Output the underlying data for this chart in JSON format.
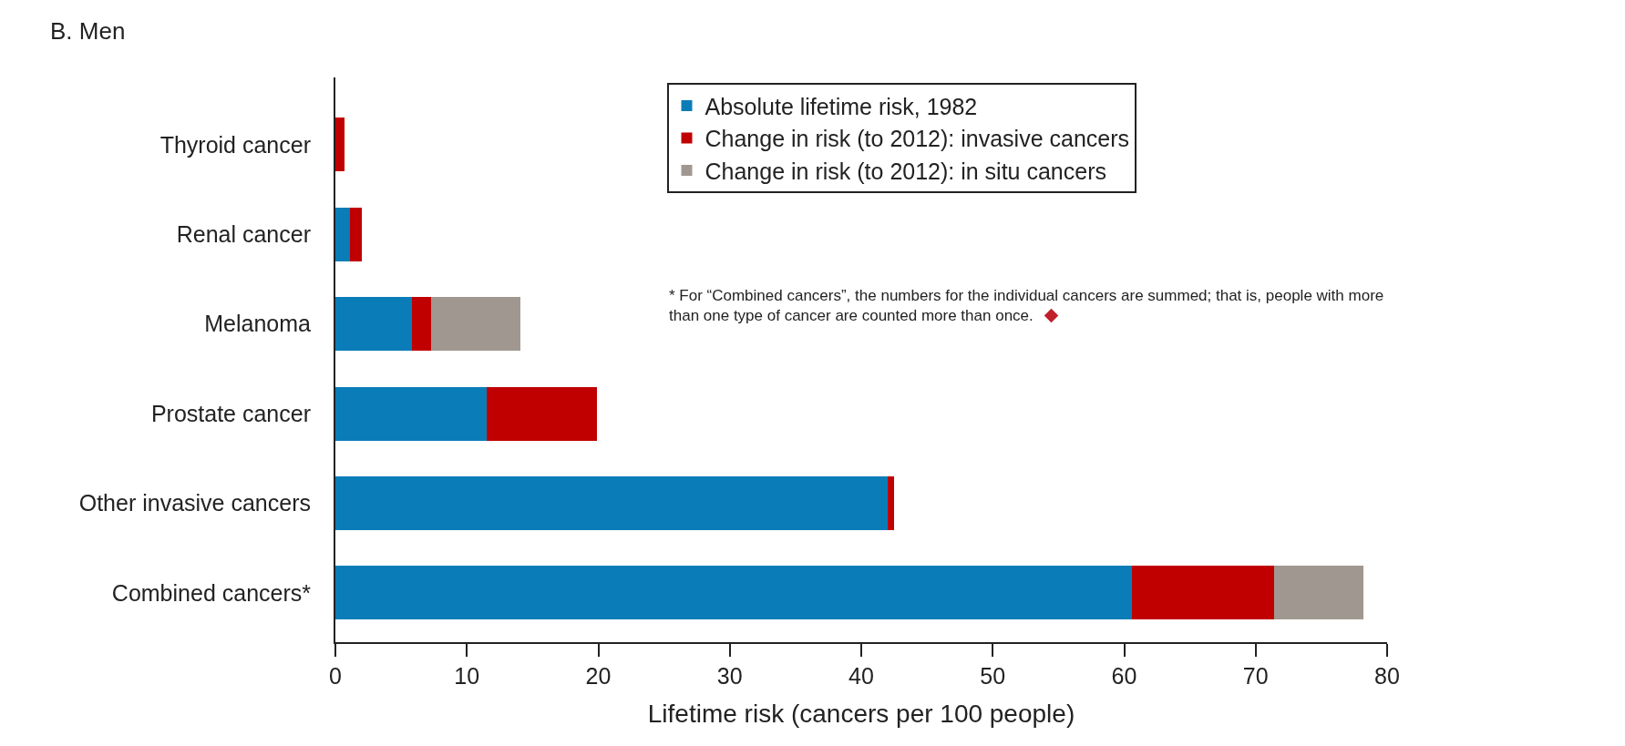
{
  "chart_data": {
    "type": "bar",
    "title": "B. Men",
    "orientation": "horizontal",
    "stacked": true,
    "categories": [
      "Thyroid cancer",
      "Renal cancer",
      "Melanoma",
      "Prostate cancer",
      "Other invasive cancers",
      "Combined cancers*"
    ],
    "series": [
      {
        "name": "Absolute lifetime risk, 1982",
        "color": "#0a7db8",
        "values": [
          0,
          1.1,
          5.8,
          11.5,
          42.0,
          60.6
        ]
      },
      {
        "name": "Change in risk (to 2012): invasive cancers",
        "color": "#c00000",
        "values": [
          0.7,
          0.9,
          1.5,
          8.4,
          0.5,
          10.8
        ]
      },
      {
        "name": "Change in risk (to 2012): in situ cancers",
        "color": "#a09890",
        "values": [
          0,
          0,
          6.8,
          0,
          0,
          6.8
        ]
      }
    ],
    "xlabel": "Lifetime risk (cancers per 100 people)",
    "xlim": [
      0,
      80
    ],
    "xticks": [
      0,
      10,
      20,
      30,
      40,
      50,
      60,
      70,
      80
    ],
    "grid": false,
    "legend": "top right",
    "annotations": [
      "* For “Combined cancers”, the numbers for the individual cancers are summed; that is, people with more\nthan one type of cancer are counted more than once."
    ]
  }
}
